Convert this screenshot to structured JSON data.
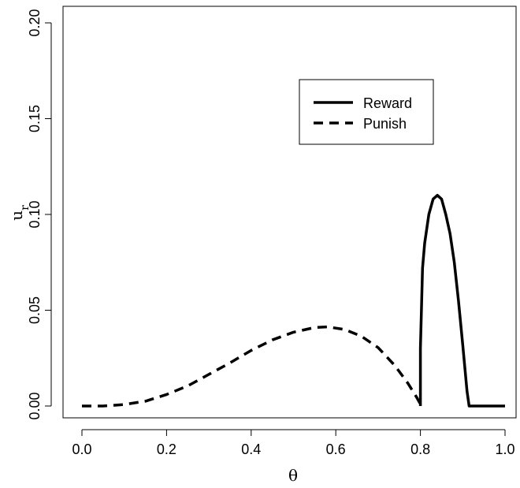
{
  "chart_data": {
    "type": "line",
    "title": "",
    "xlabel": "θ",
    "ylabel": "u_r",
    "xlim": [
      0.0,
      1.0
    ],
    "ylim": [
      0.0,
      0.2
    ],
    "x_ticks": [
      "0.0",
      "0.2",
      "0.4",
      "0.6",
      "0.8",
      "1.0"
    ],
    "y_ticks": [
      "0.00",
      "0.05",
      "0.10",
      "0.15",
      "0.20"
    ],
    "grid": false,
    "legend_position": "top-right",
    "series": [
      {
        "name": "Reward",
        "style": "solid",
        "color": "#000000",
        "x": [
          0.8,
          0.8,
          0.805,
          0.81,
          0.82,
          0.83,
          0.84,
          0.85,
          0.86,
          0.87,
          0.88,
          0.89,
          0.9,
          0.91,
          0.915,
          1.0
        ],
        "y": [
          0.0,
          0.03,
          0.072,
          0.085,
          0.1,
          0.108,
          0.11,
          0.108,
          0.1,
          0.09,
          0.075,
          0.055,
          0.032,
          0.008,
          0.0,
          0.0
        ]
      },
      {
        "name": "Punish",
        "style": "dashed",
        "color": "#000000",
        "x": [
          0.0,
          0.05,
          0.1,
          0.15,
          0.2,
          0.25,
          0.3,
          0.35,
          0.4,
          0.45,
          0.5,
          0.55,
          0.58,
          0.62,
          0.66,
          0.7,
          0.74,
          0.77,
          0.79,
          0.8
        ],
        "y": [
          0.0,
          0.0,
          0.0008,
          0.0025,
          0.006,
          0.0105,
          0.0165,
          0.0225,
          0.029,
          0.0345,
          0.0385,
          0.041,
          0.0413,
          0.04,
          0.0365,
          0.0305,
          0.021,
          0.012,
          0.005,
          0.001
        ]
      }
    ]
  },
  "legend": {
    "reward_label": "Reward",
    "punish_label": "Punish"
  }
}
